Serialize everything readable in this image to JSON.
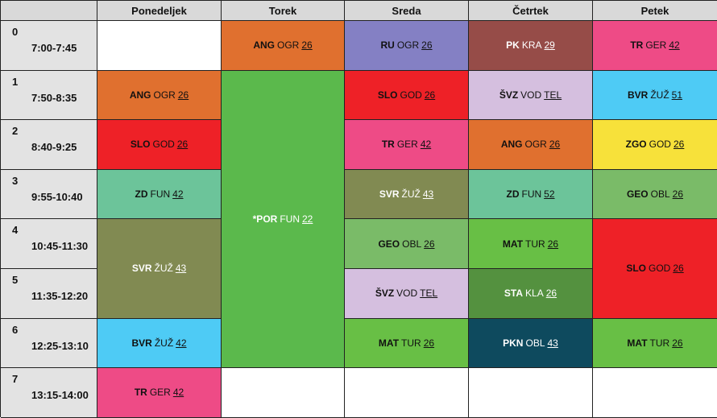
{
  "days": [
    "Ponedeljek",
    "Torek",
    "Sreda",
    "Četrtek",
    "Petek"
  ],
  "periods": [
    {
      "num": "0",
      "time": "7:00-7:45"
    },
    {
      "num": "1",
      "time": "7:50-8:35"
    },
    {
      "num": "2",
      "time": "8:40-9:25"
    },
    {
      "num": "3",
      "time": "9:55-10:40"
    },
    {
      "num": "4",
      "time": "10:45-11:30"
    },
    {
      "num": "5",
      "time": "11:35-12:20"
    },
    {
      "num": "6",
      "time": "12:25-13:10"
    },
    {
      "num": "7",
      "time": "13:15-14:00"
    }
  ],
  "lessons": [
    {
      "id": "mon-1",
      "day": 0,
      "period": 1,
      "span": 1,
      "subject": "ANG",
      "teacher": "OGR",
      "room": "26",
      "color": "#e0702f",
      "text": "dark"
    },
    {
      "id": "mon-2",
      "day": 0,
      "period": 2,
      "span": 1,
      "subject": "SLO",
      "teacher": "GOD",
      "room": "26",
      "color": "#ee2127",
      "text": "dark"
    },
    {
      "id": "mon-3",
      "day": 0,
      "period": 3,
      "span": 1,
      "subject": "ZD",
      "teacher": "FUN",
      "room": "42",
      "color": "#6cc49a",
      "text": "dark"
    },
    {
      "id": "mon-45",
      "day": 0,
      "period": 4,
      "span": 2,
      "subject": "SVR",
      "teacher": "ŽUŽ",
      "room": "43",
      "color": "#818a52",
      "text": "light"
    },
    {
      "id": "mon-6",
      "day": 0,
      "period": 6,
      "span": 1,
      "subject": "BVR",
      "teacher": "ŽUŽ",
      "room": "42",
      "color": "#4ecbf5",
      "text": "dark"
    },
    {
      "id": "mon-7",
      "day": 0,
      "period": 7,
      "span": 1,
      "subject": "TR",
      "teacher": "GER",
      "room": "42",
      "color": "#ee4b86",
      "text": "dark"
    },
    {
      "id": "tue-0",
      "day": 1,
      "period": 0,
      "span": 1,
      "subject": "ANG",
      "teacher": "OGR",
      "room": "26",
      "color": "#e0702f",
      "text": "dark"
    },
    {
      "id": "tue-16",
      "day": 1,
      "period": 1,
      "span": 6,
      "subject": "*POR",
      "teacher": "FUN",
      "room": "22",
      "color": "#5bb94c",
      "text": "light"
    },
    {
      "id": "wed-0",
      "day": 2,
      "period": 0,
      "span": 1,
      "subject": "RU",
      "teacher": "OGR",
      "room": "26",
      "color": "#8480c4",
      "text": "dark"
    },
    {
      "id": "wed-1",
      "day": 2,
      "period": 1,
      "span": 1,
      "subject": "SLO",
      "teacher": "GOD",
      "room": "26",
      "color": "#ee2127",
      "text": "dark"
    },
    {
      "id": "wed-2",
      "day": 2,
      "period": 2,
      "span": 1,
      "subject": "TR",
      "teacher": "GER",
      "room": "42",
      "color": "#ee4b86",
      "text": "dark"
    },
    {
      "id": "wed-3",
      "day": 2,
      "period": 3,
      "span": 1,
      "subject": "SVR",
      "teacher": "ŽUŽ",
      "room": "43",
      "color": "#818a52",
      "text": "light"
    },
    {
      "id": "wed-4",
      "day": 2,
      "period": 4,
      "span": 1,
      "subject": "GEO",
      "teacher": "OBL",
      "room": "26",
      "color": "#7abb68",
      "text": "dark"
    },
    {
      "id": "wed-5",
      "day": 2,
      "period": 5,
      "span": 1,
      "subject": "ŠVZ",
      "teacher": "VOD",
      "room": "TEL",
      "color": "#d5bfdf",
      "text": "dark"
    },
    {
      "id": "wed-6",
      "day": 2,
      "period": 6,
      "span": 1,
      "subject": "MAT",
      "teacher": "TUR",
      "room": "26",
      "color": "#68bf45",
      "text": "dark"
    },
    {
      "id": "thu-0",
      "day": 3,
      "period": 0,
      "span": 1,
      "subject": "PK",
      "teacher": "KRA",
      "room": "29",
      "color": "#964c48",
      "text": "light"
    },
    {
      "id": "thu-1",
      "day": 3,
      "period": 1,
      "span": 1,
      "subject": "ŠVZ",
      "teacher": "VOD",
      "room": "TEL",
      "color": "#d5bfdf",
      "text": "dark"
    },
    {
      "id": "thu-2",
      "day": 3,
      "period": 2,
      "span": 1,
      "subject": "ANG",
      "teacher": "OGR",
      "room": "26",
      "color": "#e0702f",
      "text": "dark"
    },
    {
      "id": "thu-3",
      "day": 3,
      "period": 3,
      "span": 1,
      "subject": "ZD",
      "teacher": "FUN",
      "room": "52",
      "color": "#6cc49a",
      "text": "dark"
    },
    {
      "id": "thu-4",
      "day": 3,
      "period": 4,
      "span": 1,
      "subject": "MAT",
      "teacher": "TUR",
      "room": "26",
      "color": "#68bf45",
      "text": "dark"
    },
    {
      "id": "thu-5",
      "day": 3,
      "period": 5,
      "span": 1,
      "subject": "STA",
      "teacher": "KLA",
      "room": "26",
      "color": "#54913f",
      "text": "light"
    },
    {
      "id": "thu-6",
      "day": 3,
      "period": 6,
      "span": 1,
      "subject": "PKN",
      "teacher": "OBL",
      "room": "43",
      "color": "#0e4a5e",
      "text": "light"
    },
    {
      "id": "fri-0",
      "day": 4,
      "period": 0,
      "span": 1,
      "subject": "TR",
      "teacher": "GER",
      "room": "42",
      "color": "#ee4b86",
      "text": "dark"
    },
    {
      "id": "fri-1",
      "day": 4,
      "period": 1,
      "span": 1,
      "subject": "BVR",
      "teacher": "ŽUŽ",
      "room": "51",
      "color": "#4ecbf5",
      "text": "dark"
    },
    {
      "id": "fri-2",
      "day": 4,
      "period": 2,
      "span": 1,
      "subject": "ZGO",
      "teacher": "GOD",
      "room": "26",
      "color": "#f7e13a",
      "text": "dark"
    },
    {
      "id": "fri-3",
      "day": 4,
      "period": 3,
      "span": 1,
      "subject": "GEO",
      "teacher": "OBL",
      "room": "26",
      "color": "#7abb68",
      "text": "dark"
    },
    {
      "id": "fri-45",
      "day": 4,
      "period": 4,
      "span": 2,
      "subject": "SLO",
      "teacher": "GOD",
      "room": "26",
      "color": "#ee2127",
      "text": "dark"
    },
    {
      "id": "fri-6",
      "day": 4,
      "period": 6,
      "span": 1,
      "subject": "MAT",
      "teacher": "TUR",
      "room": "26",
      "color": "#68bf45",
      "text": "dark"
    }
  ]
}
